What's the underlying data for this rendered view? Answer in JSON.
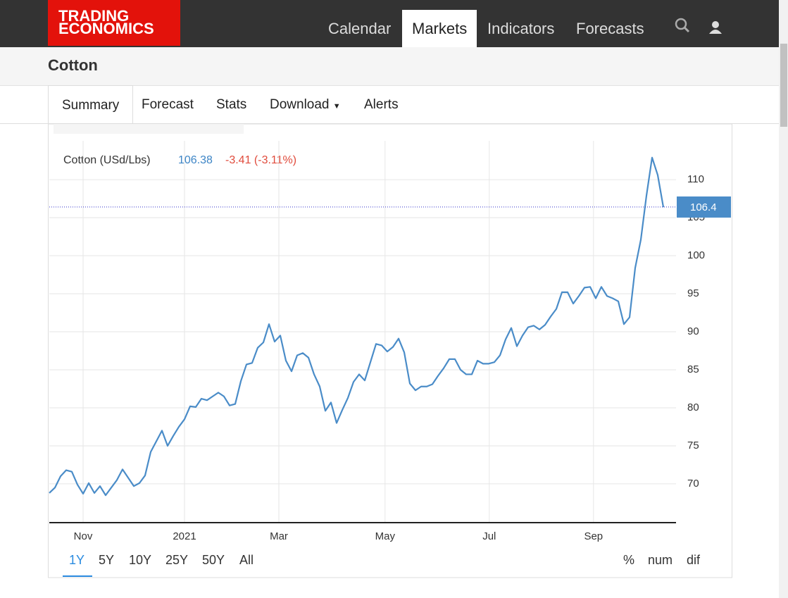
{
  "logo": [
    "TRADING",
    "ECONOMICS"
  ],
  "nav": [
    "Calendar",
    "Markets",
    "Indicators",
    "Forecasts"
  ],
  "page_title": "Cotton",
  "tabs": [
    "Summary",
    "Forecast",
    "Stats",
    "Download",
    "Alerts"
  ],
  "ranges": [
    "1Y",
    "5Y",
    "10Y",
    "25Y",
    "50Y",
    "All"
  ],
  "modes": [
    "%",
    "num",
    "dif"
  ],
  "chart_data": {
    "type": "line",
    "legend": {
      "name": "Cotton (USd/Lbs)",
      "price": 106.38,
      "change": "-3.41 (-3.11%)"
    },
    "series": [
      {
        "name": "Cotton",
        "color": "#4a8cc8",
        "values": [
          68.8,
          69.5,
          71.0,
          71.8,
          71.6,
          69.9,
          68.7,
          70.1,
          68.8,
          69.7,
          68.5,
          69.5,
          70.5,
          71.9,
          70.8,
          69.7,
          70.1,
          71.1,
          74.2,
          75.6,
          77.0,
          75.0,
          76.3,
          77.5,
          78.5,
          80.2,
          80.1,
          81.2,
          81.0,
          81.5,
          82.0,
          81.5,
          80.3,
          80.5,
          83.5,
          85.7,
          85.9,
          87.9,
          88.6,
          91.0,
          88.7,
          89.5,
          86.2,
          84.8,
          86.9,
          87.2,
          86.6,
          84.4,
          82.8,
          79.6,
          80.7,
          78.0,
          79.7,
          81.3,
          83.4,
          84.4,
          83.6,
          86.0,
          88.4,
          88.2,
          87.4,
          88.0,
          89.1,
          87.3,
          83.2,
          82.3,
          82.8,
          82.8,
          83.1,
          84.2,
          85.2,
          86.4,
          86.4,
          85.0,
          84.4,
          84.4,
          86.2,
          85.8,
          85.8,
          86.0,
          86.9,
          89.0,
          90.5,
          88.1,
          89.5,
          90.6,
          90.8,
          90.3,
          90.9,
          92.0,
          93.0,
          95.2,
          95.2,
          93.7,
          94.7,
          95.8,
          95.9,
          94.4,
          95.9,
          94.7,
          94.4,
          94.0,
          91.0,
          91.9,
          98.4,
          102.1,
          107.9,
          112.9,
          110.6,
          106.38
        ]
      }
    ],
    "last_value": 106.4,
    "xlim": [
      0,
      111.25
    ],
    "xticks": [
      {
        "value": 6,
        "label": "Nov"
      },
      {
        "value": 24,
        "label": "2021"
      },
      {
        "value": 40.75,
        "label": "Mar"
      },
      {
        "value": 59.6,
        "label": "May"
      },
      {
        "value": 78.1,
        "label": "Jul"
      },
      {
        "value": 96.6,
        "label": "Sep"
      }
    ],
    "ylim": [
      64.9,
      115.1
    ],
    "yticks": [
      70,
      75,
      80,
      85,
      90,
      95,
      100,
      105,
      110
    ],
    "grid": true
  }
}
